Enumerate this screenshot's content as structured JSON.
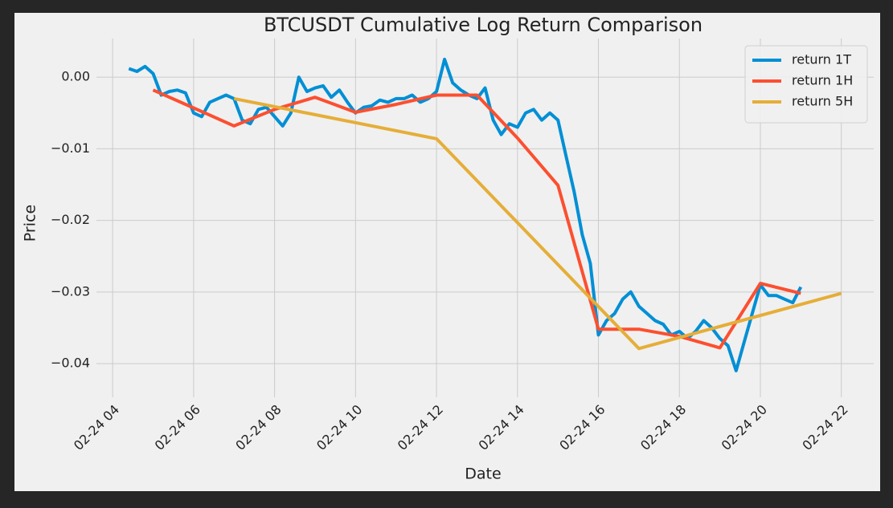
{
  "chart_data": {
    "type": "line",
    "title": "BTCUSDT Cumulative Log Return Comparison",
    "xlabel": "Date",
    "ylabel": "Price",
    "xlim": [
      3.6,
      22.8
    ],
    "ylim": [
      -0.0447,
      0.0054
    ],
    "xticks": [
      {
        "value": 4,
        "label": "02-24 04"
      },
      {
        "value": 6,
        "label": "02-24 06"
      },
      {
        "value": 8,
        "label": "02-24 08"
      },
      {
        "value": 10,
        "label": "02-24 10"
      },
      {
        "value": 12,
        "label": "02-24 12"
      },
      {
        "value": 14,
        "label": "02-24 14"
      },
      {
        "value": 16,
        "label": "02-24 16"
      },
      {
        "value": 18,
        "label": "02-24 18"
      },
      {
        "value": 20,
        "label": "02-24 20"
      },
      {
        "value": 22,
        "label": "02-24 22"
      }
    ],
    "yticks": [
      {
        "value": 0,
        "label": "0.00"
      },
      {
        "value": -0.01,
        "label": "−0.01"
      },
      {
        "value": -0.02,
        "label": "−0.02"
      },
      {
        "value": -0.03,
        "label": "−0.03"
      },
      {
        "value": -0.04,
        "label": "−0.04"
      }
    ],
    "grid": true,
    "legend": "upper right",
    "series": [
      {
        "name": "return 1T",
        "color": "#008fd5",
        "x": [
          4.4,
          4.6,
          4.8,
          5.0,
          5.2,
          5.4,
          5.6,
          5.8,
          6.0,
          6.2,
          6.4,
          6.6,
          6.8,
          7.0,
          7.2,
          7.4,
          7.6,
          7.8,
          8.0,
          8.2,
          8.4,
          8.6,
          8.8,
          9.0,
          9.2,
          9.4,
          9.6,
          9.8,
          10.0,
          10.2,
          10.4,
          10.6,
          10.8,
          11.0,
          11.2,
          11.4,
          11.6,
          11.8,
          12.0,
          12.2,
          12.4,
          12.6,
          12.8,
          13.0,
          13.2,
          13.4,
          13.6,
          13.8,
          14.0,
          14.2,
          14.4,
          14.6,
          14.8,
          15.0,
          15.2,
          15.4,
          15.6,
          15.8,
          16.0,
          16.2,
          16.4,
          16.6,
          16.8,
          17.0,
          17.2,
          17.4,
          17.6,
          17.8,
          18.0,
          18.2,
          18.4,
          18.6,
          18.8,
          19.0,
          19.2,
          19.4,
          19.6,
          19.8,
          20.0,
          20.2,
          20.4,
          20.6,
          20.8,
          21.0
        ],
        "values": [
          0.0012,
          0.0008,
          0.0015,
          0.0005,
          -0.0025,
          -0.002,
          -0.0018,
          -0.0022,
          -0.005,
          -0.0055,
          -0.0035,
          -0.003,
          -0.0025,
          -0.003,
          -0.006,
          -0.0065,
          -0.0045,
          -0.0042,
          -0.0055,
          -0.0068,
          -0.005,
          0.0,
          -0.002,
          -0.0015,
          -0.0012,
          -0.0028,
          -0.0018,
          -0.0035,
          -0.005,
          -0.0042,
          -0.004,
          -0.0032,
          -0.0035,
          -0.003,
          -0.003,
          -0.0025,
          -0.0035,
          -0.003,
          -0.002,
          0.0025,
          -0.0008,
          -0.0018,
          -0.0025,
          -0.003,
          -0.0015,
          -0.006,
          -0.008,
          -0.0065,
          -0.007,
          -0.005,
          -0.0045,
          -0.006,
          -0.005,
          -0.006,
          -0.011,
          -0.016,
          -0.022,
          -0.026,
          -0.036,
          -0.034,
          -0.033,
          -0.031,
          -0.03,
          -0.032,
          -0.033,
          -0.034,
          -0.0345,
          -0.036,
          -0.0355,
          -0.0365,
          -0.0355,
          -0.034,
          -0.035,
          -0.0365,
          -0.0375,
          -0.041,
          -0.037,
          -0.033,
          -0.029,
          -0.0305,
          -0.0305,
          -0.031,
          -0.0315,
          -0.0293
        ]
      },
      {
        "name": "return 1H",
        "color": "#fc4f30",
        "x": [
          5,
          6,
          7,
          8,
          9,
          10,
          11,
          12,
          13,
          14,
          15,
          16,
          17,
          18,
          19,
          20,
          21
        ],
        "values": [
          -0.0018,
          -0.0043,
          -0.0068,
          -0.0045,
          -0.0028,
          -0.0049,
          -0.0038,
          -0.0025,
          -0.0025,
          -0.0085,
          -0.0151,
          -0.0352,
          -0.0352,
          -0.0362,
          -0.0378,
          -0.0288,
          -0.0302
        ]
      },
      {
        "name": "return 5H",
        "color": "#e5ae38",
        "x": [
          7,
          12,
          17,
          22
        ],
        "values": [
          -0.003,
          -0.0086,
          -0.0379,
          -0.0302
        ]
      }
    ]
  }
}
